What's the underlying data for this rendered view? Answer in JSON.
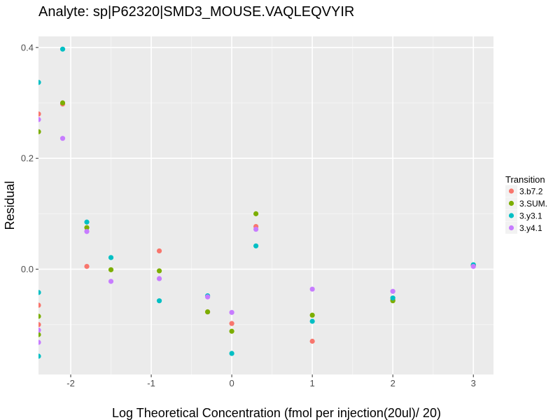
{
  "chart_data": {
    "type": "scatter",
    "title": "Analyte: sp|P62320|SMD3_MOUSE.VAQLEQVYIR",
    "xlabel": "Log Theoretical Concentration (fmol per injection(20ul)/ 20)",
    "ylabel": "Residual",
    "xlim": [
      -2.4,
      3.25
    ],
    "ylim": [
      -0.19,
      0.42
    ],
    "x_ticks": [
      -2,
      -1,
      0,
      1,
      2,
      3
    ],
    "x_tick_labels": [
      "-2",
      "-1",
      "0",
      "1",
      "2",
      "3"
    ],
    "y_ticks": [
      0.0,
      0.2,
      0.4
    ],
    "y_tick_labels": [
      "0.0",
      "0.2",
      "0.4"
    ],
    "grid": true,
    "legend": {
      "title": "Transition",
      "position": "right"
    },
    "series": [
      {
        "name": "3.b7.2",
        "color": "#F8766D",
        "points": [
          {
            "x": -2.4,
            "y": 0.28
          },
          {
            "x": -2.4,
            "y": -0.065
          },
          {
            "x": -2.4,
            "y": -0.1
          },
          {
            "x": -2.1,
            "y": 0.298
          },
          {
            "x": -1.8,
            "y": 0.005
          },
          {
            "x": -0.9,
            "y": 0.033
          },
          {
            "x": -0.3,
            "y": -0.077
          },
          {
            "x": 0.0,
            "y": -0.098
          },
          {
            "x": 0.3,
            "y": 0.077
          },
          {
            "x": 1.0,
            "y": -0.13
          },
          {
            "x": 2.0,
            "y": -0.055
          },
          {
            "x": 3.0,
            "y": 0.007
          }
        ]
      },
      {
        "name": "3.SUM.",
        "color": "#7CAE00",
        "points": [
          {
            "x": -2.4,
            "y": 0.248
          },
          {
            "x": -2.4,
            "y": -0.085
          },
          {
            "x": -2.4,
            "y": -0.118
          },
          {
            "x": -2.1,
            "y": 0.3
          },
          {
            "x": -1.8,
            "y": 0.075
          },
          {
            "x": -1.5,
            "y": -0.001
          },
          {
            "x": -0.9,
            "y": -0.003
          },
          {
            "x": -0.3,
            "y": -0.077
          },
          {
            "x": 0.0,
            "y": -0.112
          },
          {
            "x": 0.3,
            "y": 0.1
          },
          {
            "x": 1.0,
            "y": -0.083
          },
          {
            "x": 2.0,
            "y": -0.057
          },
          {
            "x": 3.0,
            "y": 0.007
          }
        ]
      },
      {
        "name": "3.y3.1",
        "color": "#00BFC4",
        "points": [
          {
            "x": -2.4,
            "y": 0.337
          },
          {
            "x": -2.4,
            "y": -0.042
          },
          {
            "x": -2.4,
            "y": -0.157
          },
          {
            "x": -2.1,
            "y": 0.397
          },
          {
            "x": -1.8,
            "y": 0.085
          },
          {
            "x": -1.5,
            "y": 0.021
          },
          {
            "x": -0.9,
            "y": -0.057
          },
          {
            "x": -0.3,
            "y": -0.048
          },
          {
            "x": 0.0,
            "y": -0.152
          },
          {
            "x": 0.3,
            "y": 0.042
          },
          {
            "x": 1.0,
            "y": -0.094
          },
          {
            "x": 2.0,
            "y": -0.052
          },
          {
            "x": 3.0,
            "y": 0.008
          }
        ]
      },
      {
        "name": "3.y4.1",
        "color": "#C77CFF",
        "points": [
          {
            "x": -2.4,
            "y": 0.27
          },
          {
            "x": -2.4,
            "y": -0.11
          },
          {
            "x": -2.4,
            "y": -0.132
          },
          {
            "x": -2.1,
            "y": 0.236
          },
          {
            "x": -1.8,
            "y": 0.068
          },
          {
            "x": -1.5,
            "y": -0.022
          },
          {
            "x": -0.9,
            "y": -0.017
          },
          {
            "x": -0.3,
            "y": -0.05
          },
          {
            "x": 0.0,
            "y": -0.078
          },
          {
            "x": 0.3,
            "y": 0.072
          },
          {
            "x": 1.0,
            "y": -0.036
          },
          {
            "x": 2.0,
            "y": -0.04
          },
          {
            "x": 3.0,
            "y": 0.005
          }
        ]
      }
    ]
  }
}
